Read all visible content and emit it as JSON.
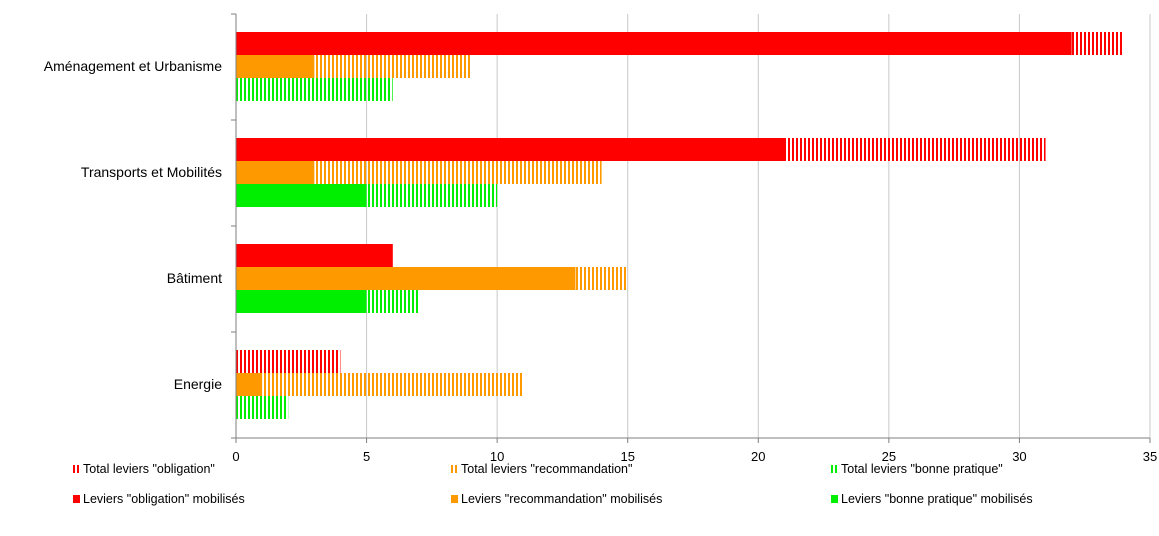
{
  "chart_data": {
    "type": "bar",
    "orientation": "horizontal",
    "categories": [
      "Aménagement et Urbanisme",
      "Transports et Mobilités",
      "Bâtiment",
      "Energie"
    ],
    "series": [
      {
        "name": "Total leviers \"obligation\"",
        "values": [
          34,
          31,
          6,
          4
        ]
      },
      {
        "name": "Leviers \"obligation\" mobilisés",
        "values": [
          32,
          21,
          6,
          0
        ]
      },
      {
        "name": "Total leviers \"recommandation\"",
        "values": [
          9,
          14,
          15,
          11
        ]
      },
      {
        "name": "Leviers \"recommandation\" mobilisés",
        "values": [
          3,
          3,
          13,
          1
        ]
      },
      {
        "name": "Total leviers \"bonne pratique\"",
        "values": [
          6,
          10,
          7,
          2
        ]
      },
      {
        "name": "Leviers \"bonne pratique\" mobilisés",
        "values": [
          0,
          5,
          5,
          0
        ]
      }
    ],
    "groups": [
      {
        "total_series": 0,
        "mobilised_series": 1,
        "color": "#ff0000"
      },
      {
        "total_series": 2,
        "mobilised_series": 3,
        "color": "#ff9900"
      },
      {
        "total_series": 4,
        "mobilised_series": 5,
        "color": "#00ee00"
      }
    ],
    "xlim": [
      0,
      35
    ],
    "xticks": [
      "0",
      "5",
      "10",
      "15",
      "20",
      "25",
      "30",
      "35"
    ],
    "grid": "vertical",
    "legend_position": "bottom",
    "legend_rows": [
      [
        {
          "series": 0,
          "style": "hatched"
        },
        {
          "series": 2,
          "style": "hatched"
        },
        {
          "series": 4,
          "style": "hatched"
        }
      ],
      [
        {
          "series": 1,
          "style": "solid"
        },
        {
          "series": 3,
          "style": "solid"
        },
        {
          "series": 5,
          "style": "solid"
        }
      ]
    ]
  }
}
